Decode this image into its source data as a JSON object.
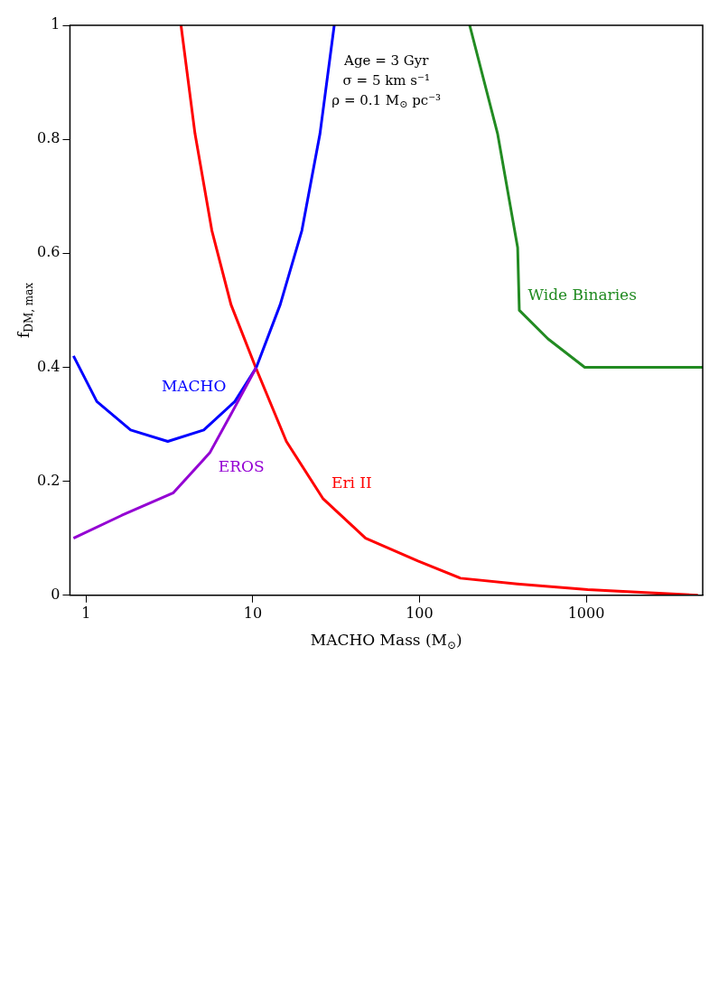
{
  "chart_data": {
    "type": "line",
    "xlabel": "MACHO Mass (M$_{⊙}$)",
    "ylabel": "f$_{DM, max}$",
    "log": "x",
    "xlim": [
      0.8,
      5000
    ],
    "xticks": [
      1,
      10,
      100,
      1000
    ],
    "ylim": [
      0,
      1
    ],
    "yticks": [
      0,
      0.2,
      0.4,
      0.6,
      0.8,
      1
    ],
    "grid": false,
    "legend": false,
    "annotations": [
      "Age = 3 Gyr",
      "σ = 5 km s⁻¹",
      "ρ = 0.1 M$_{⊙}$ pc⁻³"
    ],
    "series": [
      {
        "name": "EROS",
        "color": "#9400d3",
        "x": [
          0.84,
          1.63,
          3.34,
          5.52,
          7.8,
          10.5
        ],
        "values": [
          0.1,
          0.14,
          0.18,
          0.25,
          0.33,
          0.4
        ]
      },
      {
        "name": "MACHO",
        "color": "#0000ff",
        "x": [
          0.84,
          1.16,
          1.85,
          3.09,
          5.08,
          7.8,
          10.5,
          14.6,
          19.7,
          25.3,
          30.8
        ],
        "values": [
          0.42,
          0.34,
          0.29,
          0.27,
          0.29,
          0.34,
          0.4,
          0.51,
          0.64,
          0.81,
          1
        ]
      },
      {
        "name": "Eri II",
        "color": "#ff0000",
        "x": [
          3.71,
          4.5,
          5.68,
          7.4,
          10.4,
          15.9,
          26.3,
          47.5,
          98,
          176,
          386,
          1020,
          4680
        ],
        "values": [
          1,
          0.81,
          0.64,
          0.51,
          0.4,
          0.27,
          0.17,
          0.1,
          0.06,
          0.03,
          0.02,
          0.01,
          0
        ]
      },
      {
        "name": "Wide Binaries",
        "color": "#228b22",
        "x": [
          200,
          294,
          388,
          397,
          590,
          980,
          5000
        ],
        "values": [
          1,
          0.81,
          0.61,
          0.5,
          0.45,
          0.4,
          0.4
        ]
      }
    ]
  }
}
